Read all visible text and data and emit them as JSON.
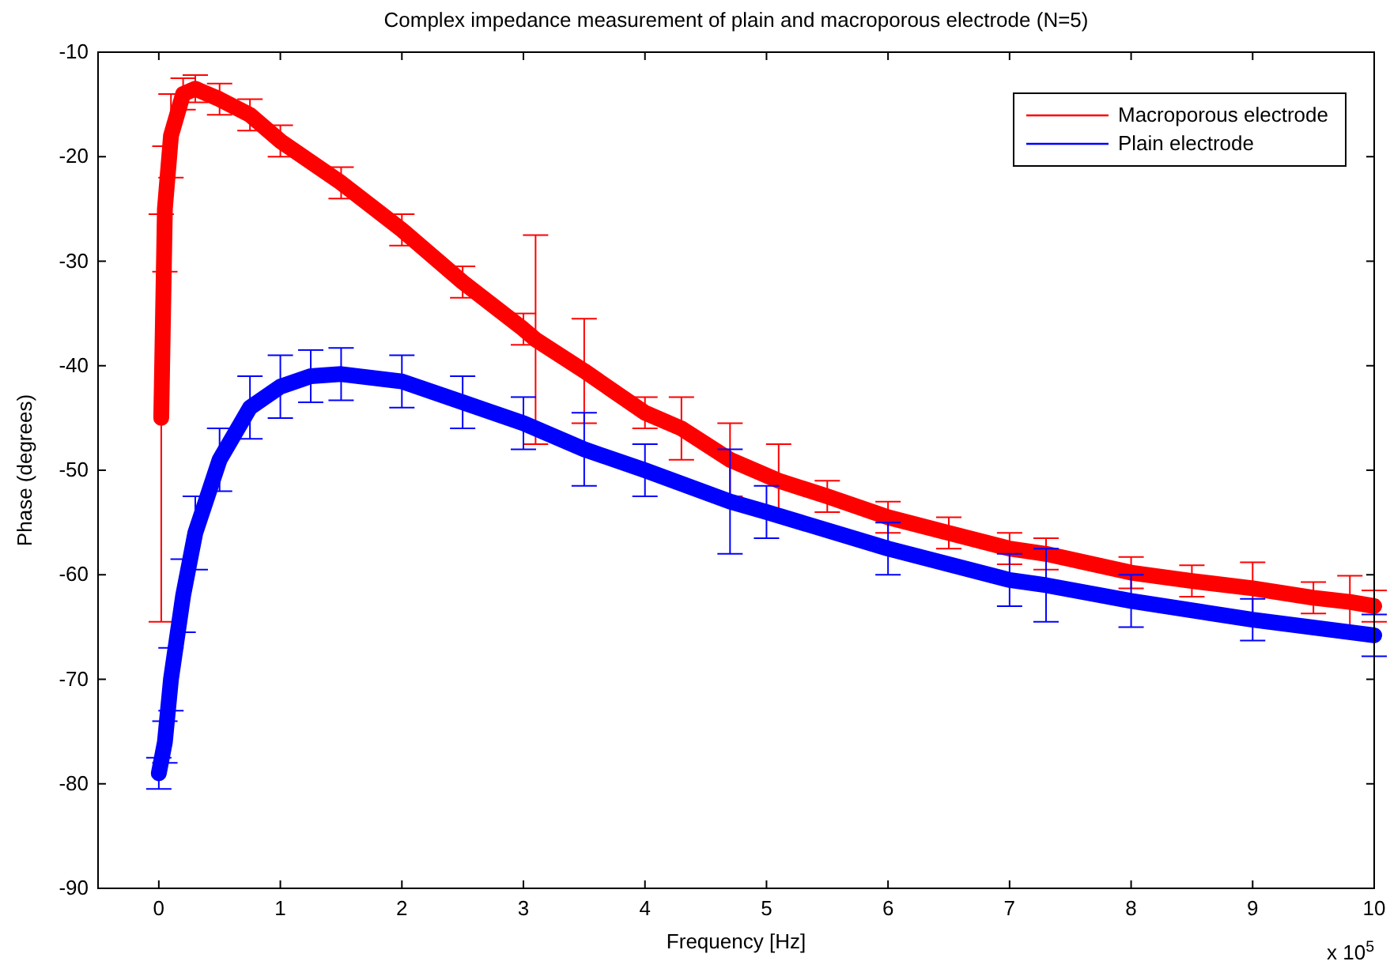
{
  "chart_data": {
    "type": "line",
    "title": "Complex impedance measurement of plain and macroporous electrode (N=5)",
    "xlabel": "Frequency [Hz]",
    "ylabel": "Phase (degrees)",
    "annotations": [
      "x 10$^{5}$"
    ],
    "xlim": [
      -0.5,
      10
    ],
    "xticks": [
      0,
      1,
      2,
      3,
      4,
      5,
      6,
      7,
      8,
      9,
      10
    ],
    "ylim": [
      -90,
      -10
    ],
    "yticks": [
      -90,
      -80,
      -70,
      -60,
      -50,
      -40,
      -30,
      -20,
      -10
    ],
    "grid": false,
    "legend": "top right",
    "line_style": "solid",
    "series": [
      {
        "name": "Macroporous electrode",
        "color": "#ff0000",
        "x": [
          0.02,
          0.05,
          0.1,
          0.2,
          0.3,
          0.5,
          0.75,
          1,
          1.5,
          2,
          2.5,
          3,
          3.1,
          3.5,
          4,
          4.3,
          4.7,
          5.1,
          5.5,
          6,
          6.5,
          7,
          7.3,
          8,
          8.5,
          9,
          9.5,
          9.8,
          10
        ],
        "values": [
          -45,
          -25,
          -18,
          -14,
          -13.5,
          -14.5,
          -16,
          -18.5,
          -22.5,
          -27,
          -32,
          -36.5,
          -37.5,
          -40.5,
          -44.5,
          -46,
          -49,
          -51,
          -52.5,
          -54.5,
          -56,
          -57.5,
          -58,
          -59.8,
          -60.6,
          -61.3,
          -62.2,
          -62.6,
          -63
        ],
        "errors": [
          19.5,
          6,
          4,
          1.5,
          1.3,
          1.5,
          1.5,
          1.5,
          1.5,
          1.5,
          1.5,
          1.5,
          10,
          5,
          1.5,
          3,
          3.5,
          3.5,
          1.5,
          1.5,
          1.5,
          1.5,
          1.5,
          1.5,
          1.5,
          2.5,
          1.5,
          2.5,
          1.5
        ]
      },
      {
        "name": "Plain electrode",
        "color": "#0000ff",
        "x": [
          0,
          0.05,
          0.1,
          0.2,
          0.3,
          0.5,
          0.75,
          1,
          1.25,
          1.5,
          2,
          2.5,
          3,
          3.5,
          4,
          4.7,
          5,
          6,
          7,
          7.3,
          8,
          9,
          10
        ],
        "values": [
          -79,
          -76,
          -70,
          -62,
          -56,
          -49,
          -44,
          -42,
          -41,
          -40.8,
          -41.5,
          -43.5,
          -45.5,
          -48,
          -50,
          -53,
          -54,
          -57.5,
          -60.5,
          -61,
          -62.5,
          -64.3,
          -65.8
        ],
        "errors": [
          1.5,
          2,
          3,
          3.5,
          3.5,
          3,
          3,
          3,
          2.5,
          2.5,
          2.5,
          2.5,
          2.5,
          3.5,
          2.5,
          5,
          2.5,
          2.5,
          2.5,
          3.5,
          2.5,
          2,
          2
        ]
      }
    ]
  }
}
